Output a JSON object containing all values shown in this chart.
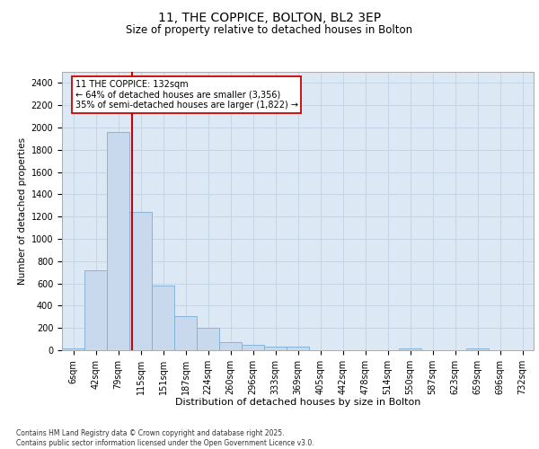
{
  "title1": "11, THE COPPICE, BOLTON, BL2 3EP",
  "title2": "Size of property relative to detached houses in Bolton",
  "xlabel": "Distribution of detached houses by size in Bolton",
  "ylabel": "Number of detached properties",
  "categories": [
    "6sqm",
    "42sqm",
    "79sqm",
    "115sqm",
    "151sqm",
    "187sqm",
    "224sqm",
    "260sqm",
    "296sqm",
    "333sqm",
    "369sqm",
    "405sqm",
    "442sqm",
    "478sqm",
    "514sqm",
    "550sqm",
    "587sqm",
    "623sqm",
    "659sqm",
    "696sqm",
    "732sqm"
  ],
  "values": [
    15,
    720,
    1960,
    1240,
    580,
    310,
    205,
    75,
    45,
    30,
    30,
    0,
    0,
    0,
    0,
    20,
    0,
    0,
    20,
    0,
    0
  ],
  "bar_color": "#c8d8ed",
  "bar_edge_color": "#7bafd4",
  "vline_color": "#cc0000",
  "vline_x": 2.62,
  "annotation_text": "11 THE COPPICE: 132sqm\n← 64% of detached houses are smaller (3,356)\n35% of semi-detached houses are larger (1,822) →",
  "annotation_box_edgecolor": "#cc0000",
  "ylim": [
    0,
    2500
  ],
  "yticks": [
    0,
    200,
    400,
    600,
    800,
    1000,
    1200,
    1400,
    1600,
    1800,
    2000,
    2200,
    2400
  ],
  "grid_color": "#c5d5e5",
  "bg_color": "#dce8f4",
  "footer": "Contains HM Land Registry data © Crown copyright and database right 2025.\nContains public sector information licensed under the Open Government Licence v3.0.",
  "title1_fontsize": 10,
  "title2_fontsize": 8.5,
  "annotation_fontsize": 7,
  "xlabel_fontsize": 8,
  "ylabel_fontsize": 7.5,
  "tick_fontsize": 7,
  "footer_fontsize": 5.5
}
